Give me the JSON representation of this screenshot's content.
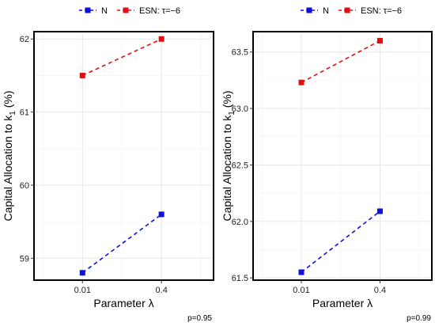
{
  "colors": {
    "N": "#1010e0",
    "ESN": "#e01010",
    "grid": "#e6e6e6",
    "axis": "#000000"
  },
  "chart_data": [
    {
      "type": "line",
      "legend": {
        "entries": [
          "N",
          "ESN: τ=−6"
        ],
        "placement": "top"
      },
      "categories": [
        "0.01",
        "0.4"
      ],
      "series": [
        {
          "name": "N",
          "values": [
            58.8,
            59.6
          ]
        },
        {
          "name": "ESN: τ=−6",
          "values": [
            61.5,
            62.0
          ]
        }
      ],
      "xlabel": "Parameter λ",
      "ylabel_main": "Capital Allocation to  k",
      "ylabel_sub": "1",
      "ylabel_unit": " (%)",
      "ylim": [
        58.7,
        62.1
      ],
      "yticks": [
        59,
        60,
        61,
        62
      ],
      "ytick_labels": [
        "59",
        "60",
        "61",
        "62"
      ],
      "footnote": "p=0.95",
      "grid": true,
      "line_style": "dashed"
    },
    {
      "type": "line",
      "legend": {
        "entries": [
          "N",
          "ESN: τ=−6"
        ],
        "placement": "top"
      },
      "categories": [
        "0.01",
        "0.4"
      ],
      "series": [
        {
          "name": "N",
          "values": [
            61.55,
            62.09
          ]
        },
        {
          "name": "ESN: τ=−6",
          "values": [
            63.23,
            63.6
          ]
        }
      ],
      "xlabel": "Parameter λ",
      "ylabel_main": "Capital Allocation to  k",
      "ylabel_sub": "1",
      "ylabel_unit": " (%)",
      "ylim": [
        61.48,
        63.68
      ],
      "yticks": [
        61.5,
        62.0,
        62.5,
        63.0,
        63.5
      ],
      "ytick_labels": [
        "61.5",
        "62.0",
        "62.5",
        "63.0",
        "63.5"
      ],
      "footnote": "p=0.99",
      "grid": true,
      "line_style": "dashed"
    }
  ]
}
